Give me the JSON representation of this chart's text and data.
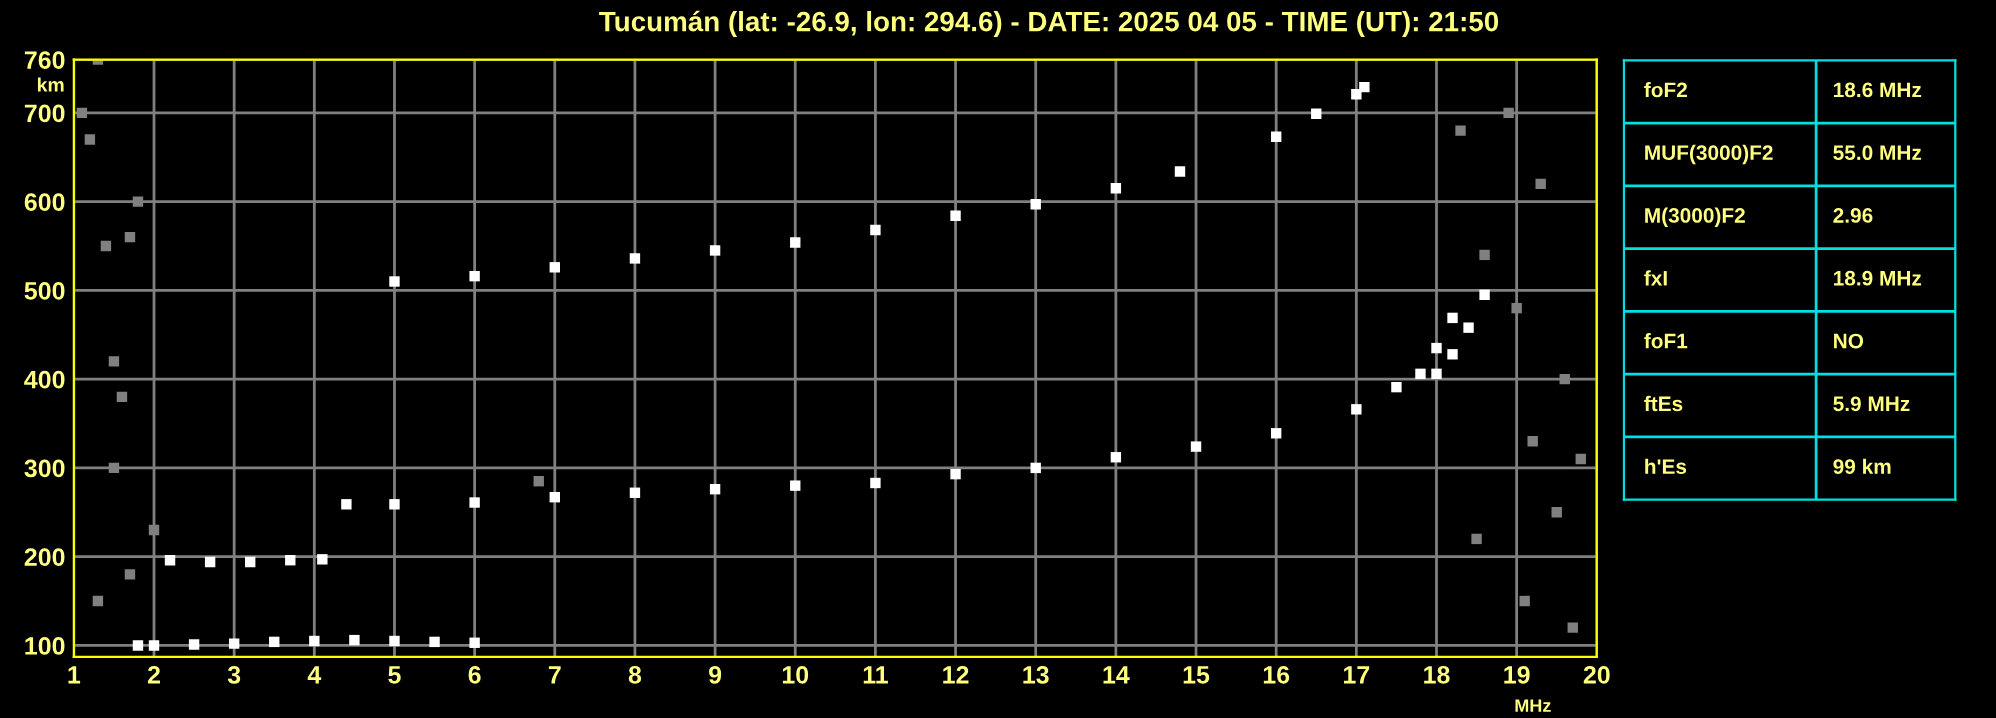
{
  "chart_data": [
    {
      "type": "scatter",
      "title": "Tucumán (lat: -26.9, lon: 294.6) - DATE: 2025 04 05 - TIME (UT): 21:50",
      "xlabel": "MHz",
      "ylabel": "km",
      "xlim": [
        1,
        20
      ],
      "ylim": [
        87,
        760
      ],
      "xticks": [
        1,
        2,
        3,
        4,
        5,
        6,
        7,
        8,
        9,
        10,
        11,
        12,
        13,
        14,
        15,
        16,
        17,
        18,
        19,
        20
      ],
      "yticks": [
        100,
        200,
        300,
        400,
        500,
        600,
        700,
        760
      ],
      "grid": true,
      "legend": false,
      "marker": "square",
      "series": [
        {
          "color": "#ffffff",
          "x": [
            4.4,
            5,
            6,
            7,
            8,
            9,
            10,
            11,
            12,
            13,
            14,
            15,
            16,
            17,
            17.5,
            18,
            18.2,
            18.4,
            18.6
          ],
          "values": [
            259,
            259,
            261,
            267,
            272,
            276,
            280,
            283,
            293,
            300,
            312,
            324,
            339,
            366,
            391,
            406,
            428,
            458,
            495
          ]
        },
        {
          "color": "#ffffff",
          "x": [
            17.8,
            18.0,
            18.2
          ],
          "values": [
            406,
            435,
            469
          ]
        },
        {
          "color": "#ffffff",
          "x": [
            5,
            6,
            7,
            8,
            9,
            10,
            11,
            12,
            13,
            14,
            14.8,
            16,
            16.5,
            17,
            17.1
          ],
          "values": [
            510,
            516,
            526,
            536,
            545,
            554,
            568,
            584,
            597,
            615,
            634,
            673,
            699,
            721,
            729
          ]
        },
        {
          "color": "#ffffff",
          "x": [
            1.8,
            2,
            2.5,
            3,
            3.5,
            4,
            4.5,
            5,
            5.5,
            6
          ],
          "values": [
            100,
            100,
            101,
            102,
            104,
            105,
            106,
            105,
            104,
            103
          ]
        },
        {
          "color": "#ffffff",
          "x": [
            2.2,
            2.7,
            3.2,
            3.7,
            4.1
          ],
          "values": [
            196,
            194,
            194,
            196,
            197
          ]
        },
        {
          "color": "#808080",
          "x": [
            1.1,
            1.2,
            1.3,
            1.4,
            1.5,
            1.6,
            1.7,
            1.8,
            2.0,
            1.5,
            1.3,
            1.7,
            18.3,
            18.6,
            19.0,
            19.3,
            19.6,
            19.8,
            18.5,
            19.1,
            19.5,
            18.9,
            19.2,
            19.7,
            6.8
          ],
          "values": [
            700,
            670,
            760,
            550,
            420,
            380,
            560,
            600,
            230,
            300,
            150,
            180,
            680,
            540,
            480,
            620,
            400,
            310,
            220,
            150,
            250,
            700,
            330,
            120,
            285
          ]
        }
      ]
    },
    {
      "type": "other",
      "annotations": [
        "foF2",
        "18.6 MHz",
        "MUF(3000)F2",
        "55.0 MHz",
        "M(3000)F2",
        "2.96",
        "fxI",
        "18.9 MHz",
        "foF1",
        "NO",
        "ftEs",
        "5.9 MHz",
        "h'Es",
        "99 km"
      ]
    }
  ]
}
